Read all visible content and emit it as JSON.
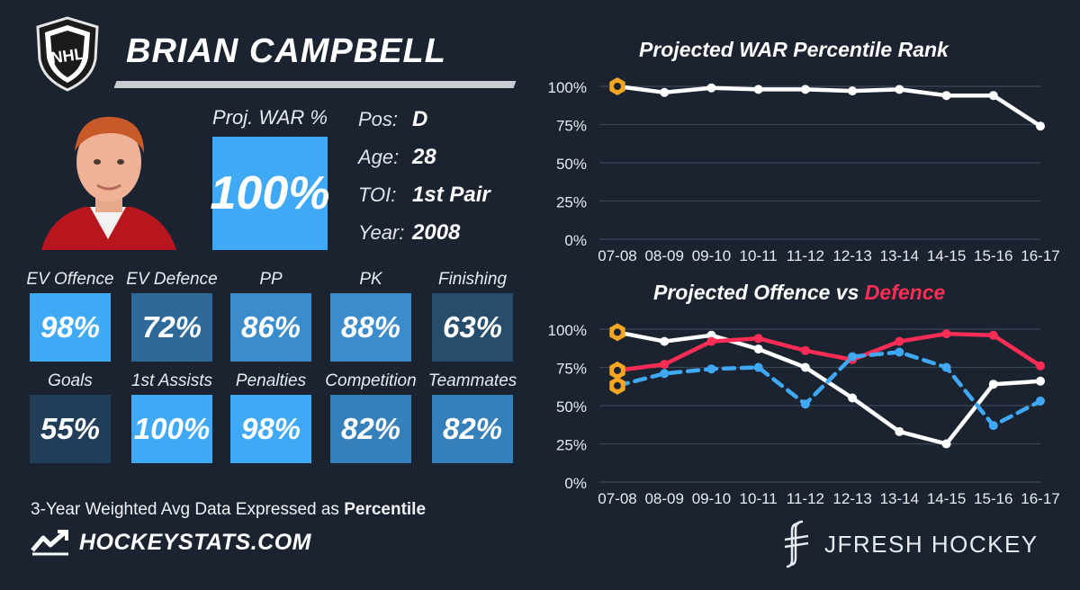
{
  "player": {
    "name": "BRIAN CAMPBELL",
    "war_label": "Proj. WAR %",
    "war_value": "100%",
    "info": [
      {
        "key": "Pos:",
        "value": "D"
      },
      {
        "key": "Age:",
        "value": "28"
      },
      {
        "key": "TOI:",
        "value": "1st Pair"
      },
      {
        "key": "Year:",
        "value": "2008"
      }
    ]
  },
  "tiles": [
    {
      "label": "EV Offence",
      "value": "98%",
      "color": "#3fa9f5"
    },
    {
      "label": "EV Defence",
      "value": "72%",
      "color": "#2e6a99"
    },
    {
      "label": "PP",
      "value": "86%",
      "color": "#3b8ccc"
    },
    {
      "label": "PK",
      "value": "88%",
      "color": "#3b8ccc"
    },
    {
      "label": "Finishing",
      "value": "63%",
      "color": "#274d6d"
    },
    {
      "label": "Goals",
      "value": "55%",
      "color": "#213d57"
    },
    {
      "label": "1st Assists",
      "value": "100%",
      "color": "#3fa9f5"
    },
    {
      "label": "Penalties",
      "value": "98%",
      "color": "#3fa9f5"
    },
    {
      "label": "Competition",
      "value": "82%",
      "color": "#3580ba"
    },
    {
      "label": "Teammates",
      "value": "82%",
      "color": "#3580ba"
    }
  ],
  "footer": {
    "note_prefix": "3-Year Weighted Avg Data Expressed as ",
    "note_bold": "Percentile",
    "left_brand": "HOCKEYSTATS.COM",
    "right_brand": "JFRESH HOCKEY"
  },
  "chart_data": [
    {
      "type": "line",
      "title": "Projected WAR Percentile Rank",
      "x": [
        "07-08",
        "08-09",
        "09-10",
        "10-11",
        "11-12",
        "12-13",
        "13-14",
        "14-15",
        "15-16",
        "16-17"
      ],
      "ylim": [
        0,
        100
      ],
      "yticks": [
        "0%",
        "25%",
        "50%",
        "75%",
        "100%"
      ],
      "grid": true,
      "series": [
        {
          "color": "#ffffff",
          "values": [
            100,
            96,
            99,
            98,
            98,
            97,
            98,
            94,
            94,
            74
          ]
        }
      ],
      "highlight_color": "#f5a623"
    },
    {
      "type": "line",
      "title": "Projected Offence vs ",
      "title_highlight": "Defence",
      "title_highlight_color": "#ff2d55",
      "x": [
        "07-08",
        "08-09",
        "09-10",
        "10-11",
        "11-12",
        "12-13",
        "13-14",
        "14-15",
        "15-16",
        "16-17"
      ],
      "ylim": [
        0,
        100
      ],
      "yticks": [
        "0%",
        "25%",
        "50%",
        "75%",
        "100%"
      ],
      "grid": true,
      "series": [
        {
          "color": "#ffffff",
          "dashed": false,
          "values": [
            98,
            92,
            96,
            87,
            75,
            55,
            33,
            25,
            64,
            66
          ]
        },
        {
          "color": "#ff2d55",
          "dashed": false,
          "values": [
            73,
            77,
            92,
            94,
            86,
            80,
            92,
            97,
            96,
            76
          ]
        },
        {
          "color": "#3fa9f5",
          "dashed": true,
          "values": [
            63,
            71,
            74,
            75,
            51,
            82,
            85,
            75,
            37,
            53
          ]
        }
      ],
      "highlight_color": "#f5a623"
    }
  ]
}
